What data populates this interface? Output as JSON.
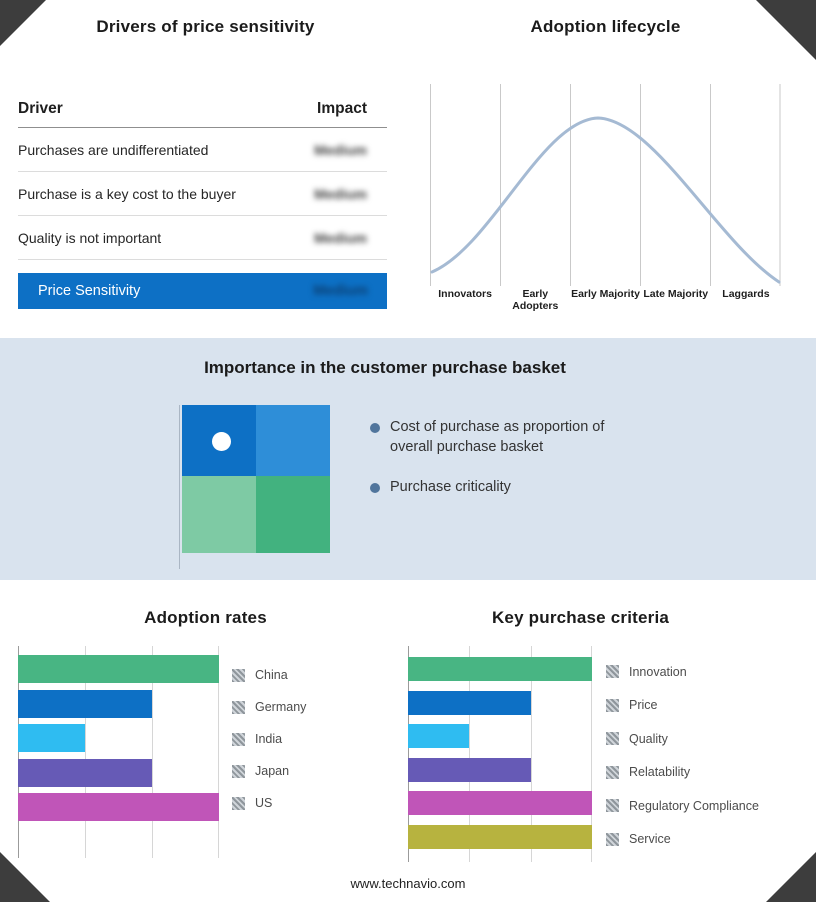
{
  "page": {
    "footer_url": "www.technavio.com",
    "band_bg": "#d9e3ee",
    "corner_color": "#3d3d3d"
  },
  "drivers_panel": {
    "title": "Drivers of price sensitivity",
    "columns": [
      "Driver",
      "Impact"
    ],
    "rows": [
      {
        "driver": "Purchases are undifferentiated",
        "impact": "Medium"
      },
      {
        "driver": "Purchase is a key cost to the buyer",
        "impact": "Medium"
      },
      {
        "driver": "Quality is not important",
        "impact": "Medium"
      }
    ],
    "summary_row": {
      "label": "Price Sensitivity",
      "impact": "Medium",
      "bg": "#0d70c5"
    }
  },
  "importance_panel": {
    "title": "Importance in the customer purchase basket",
    "bullets": [
      "Cost of purchase as proportion of overall purchase basket",
      "Purchase criticality"
    ],
    "bullet_color": "#50759c",
    "quadrants": {
      "top_left": "#0d70c5",
      "top_right": "#2e8ed8",
      "bottom_left": "#7ecaa4",
      "bottom_right": "#42b27f"
    }
  },
  "chart_data": [
    {
      "id": "adoption_lifecycle",
      "type": "line",
      "title": "Adoption lifecycle",
      "categories": [
        "Innovators",
        "Early Adopters",
        "Early Majority",
        "Late Majority",
        "Laggards"
      ],
      "shape": "bell curve peaking at Early Majority",
      "color": "#a5bad3",
      "grid": true
    },
    {
      "id": "adoption_rates",
      "type": "bar",
      "orientation": "horizontal",
      "title": "Adoption rates",
      "categories": [
        "China",
        "Germany",
        "India",
        "Japan",
        "US"
      ],
      "values": [
        3,
        2,
        1,
        2,
        3
      ],
      "colors": [
        "#48b583",
        "#0d70c5",
        "#2fbcf1",
        "#665ab6",
        "#c055b8"
      ],
      "xmax": 3,
      "legend_position": "right"
    },
    {
      "id": "key_purchase_criteria",
      "type": "bar",
      "orientation": "horizontal",
      "title": "Key purchase criteria",
      "categories": [
        "Innovation",
        "Price",
        "Quality",
        "Relatability",
        "Regulatory Compliance",
        "Service"
      ],
      "values": [
        3,
        2,
        1,
        2,
        3,
        3
      ],
      "colors": [
        "#48b583",
        "#0d70c5",
        "#2fbcf1",
        "#665ab6",
        "#c055b8",
        "#b7b33f"
      ],
      "xmax": 3,
      "legend_position": "right"
    }
  ]
}
